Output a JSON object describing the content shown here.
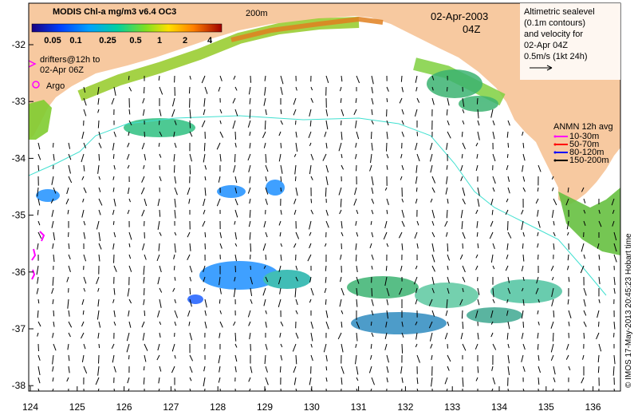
{
  "colorbar": {
    "title": "MODIS Chl-a mg/m3 v6.4 OC3",
    "ticks": [
      "0.05",
      "0.1",
      "0.25",
      "0.5",
      "1",
      "2",
      "4"
    ]
  },
  "labels": {
    "isobath": "200m",
    "drifters_line1": "drifters@12h to",
    "drifters_line2": "02-Apr 06Z",
    "argo": "Argo",
    "date": "02-Apr-2003",
    "time": "04Z"
  },
  "altimetry": {
    "lines": [
      "Altimetric sealevel",
      "(0.1m contours)",
      "and velocity for",
      "02-Apr 04Z",
      "0.5m/s (1kt 24h)"
    ]
  },
  "anmn": {
    "title": "ANMN 12h avg",
    "entries": [
      {
        "label": "10-30m",
        "color": "#ff00ff"
      },
      {
        "label": "50-70m",
        "color": "#ff0000"
      },
      {
        "label": "80-120m",
        "color": "#0000ff"
      },
      {
        "label": "150-200m",
        "color": "#000000"
      }
    ]
  },
  "axes": {
    "x_ticks": [
      "124",
      "125",
      "126",
      "127",
      "128",
      "129",
      "130",
      "131",
      "132",
      "133",
      "134",
      "135",
      "136"
    ],
    "y_ticks": [
      "-32",
      "-33",
      "-34",
      "-35",
      "-36",
      "-37",
      "-38"
    ]
  },
  "credit": "© IMOS 17-May-2013 20:45:23 Hobart time",
  "colors": {
    "land": "#f7c9a0",
    "ocean": "#ffffff",
    "contour": "#40e0d0",
    "drifter": "#ff00ff"
  }
}
